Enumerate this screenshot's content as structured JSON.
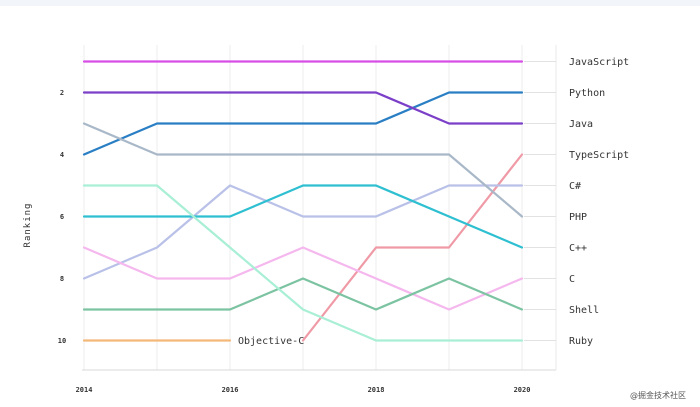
{
  "watermark": "@掘金技术社区",
  "chart_data": {
    "type": "line",
    "title": "",
    "xlabel": "",
    "ylabel": "Ranking",
    "x": [
      2014,
      2015,
      2016,
      2017,
      2018,
      2019,
      2020
    ],
    "x_tick_labels": [
      "2014",
      "2016",
      "2018",
      "2020"
    ],
    "y_tick_labels": [
      "2",
      "4",
      "6",
      "8",
      "10"
    ],
    "ylim": [
      0.5,
      10.5
    ],
    "y_inverted": true,
    "grid": "vertical lines",
    "legend": "right-side direct labels",
    "series": [
      {
        "name": "JavaScript",
        "color": "#d64ee6",
        "values": [
          1,
          1,
          1,
          1,
          1,
          1,
          1
        ]
      },
      {
        "name": "Python",
        "color": "#2a7fc4",
        "values": [
          4,
          3,
          3,
          3,
          3,
          2,
          2
        ]
      },
      {
        "name": "Java",
        "color": "#7b3fc8",
        "values": [
          2,
          2,
          2,
          2,
          2,
          3,
          3
        ]
      },
      {
        "name": "TypeScript",
        "color": "#ef9aa6",
        "values": [
          null,
          null,
          null,
          10,
          7,
          7,
          4
        ]
      },
      {
        "name": "C#",
        "color": "#b9c1e8",
        "values": [
          8,
          7,
          5,
          6,
          6,
          5,
          5
        ]
      },
      {
        "name": "PHP",
        "color": "#a9b8c8",
        "values": [
          3,
          4,
          4,
          4,
          4,
          4,
          6
        ]
      },
      {
        "name": "C++",
        "color": "#2ebfd1",
        "values": [
          6,
          6,
          6,
          5,
          5,
          6,
          7
        ]
      },
      {
        "name": "C",
        "color": "#f5b8ee",
        "values": [
          7,
          8,
          8,
          7,
          8,
          9,
          8
        ]
      },
      {
        "name": "Shell",
        "color": "#7cc3a2",
        "values": [
          9,
          9,
          9,
          8,
          9,
          8,
          9
        ]
      },
      {
        "name": "Ruby",
        "color": "#a8efd5",
        "values": [
          5,
          5,
          7,
          9,
          10,
          10,
          10
        ]
      },
      {
        "name": "Objective-C",
        "color": "#f4b878",
        "values": [
          10,
          10,
          10,
          null,
          null,
          null,
          null
        ],
        "inline_label": true
      }
    ]
  }
}
